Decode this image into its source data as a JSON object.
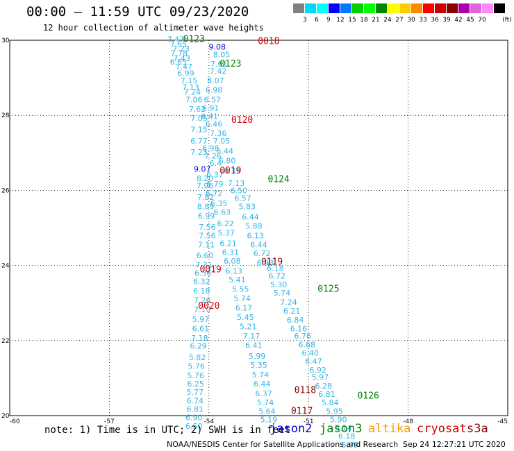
{
  "title": "00:00 – 11:59 UTC 09/23/2020",
  "subtitle": "12 hour collection of altimeter wave heights",
  "legend": {
    "unit": "(ft)",
    "items": [
      {
        "color": "#808080",
        "label": ""
      },
      {
        "color": "#00d8ff",
        "label": "3"
      },
      {
        "color": "#00ffff",
        "label": "6"
      },
      {
        "color": "#0000ff",
        "label": "9"
      },
      {
        "color": "#0077ff",
        "label": "12"
      },
      {
        "color": "#00d000",
        "label": "15"
      },
      {
        "color": "#00ff00",
        "label": "18"
      },
      {
        "color": "#008800",
        "label": "21"
      },
      {
        "color": "#ffff00",
        "label": "24"
      },
      {
        "color": "#ffcc00",
        "label": "27"
      },
      {
        "color": "#ff8800",
        "label": "30"
      },
      {
        "color": "#ff0000",
        "label": "33"
      },
      {
        "color": "#cc0000",
        "label": "36"
      },
      {
        "color": "#880000",
        "label": "39"
      },
      {
        "color": "#aa00aa",
        "label": "42"
      },
      {
        "color": "#dd66dd",
        "label": "45"
      },
      {
        "color": "#ff88ff",
        "label": "70"
      },
      {
        "color": "#000000",
        "label": ""
      }
    ]
  },
  "axes": {
    "lon_range": [
      -60,
      -45
    ],
    "lat_range": [
      20,
      30
    ],
    "x_ticks": [
      {
        "v": -60,
        "label": "-60"
      },
      {
        "v": -57,
        "label": "-57"
      },
      {
        "v": -54,
        "label": "-54"
      },
      {
        "v": -51,
        "label": "-51"
      },
      {
        "v": -48,
        "label": "-48"
      },
      {
        "v": -45,
        "label": "-45"
      }
    ],
    "y_ticks": [
      {
        "v": 20,
        "label": "20"
      },
      {
        "v": 22,
        "label": "22"
      },
      {
        "v": 24,
        "label": "24"
      },
      {
        "v": 26,
        "label": "26"
      },
      {
        "v": 28,
        "label": "28"
      },
      {
        "v": 30,
        "label": "30"
      }
    ],
    "grid": "dotted"
  },
  "tracks": [
    {
      "color": "#33b5e5",
      "points": [
        {
          "lon": -55.0,
          "lat": 29.95,
          "v": "7.47"
        },
        {
          "lon": -54.92,
          "lat": 29.82,
          "v": "7.65"
        },
        {
          "lon": -54.84,
          "lat": 29.7,
          "v": "7.23"
        },
        {
          "lon": -54.9,
          "lat": 29.58,
          "v": "7.78"
        },
        {
          "lon": -54.82,
          "lat": 29.45,
          "v": "7.43"
        },
        {
          "lon": -54.92,
          "lat": 29.35,
          "v": "6.65"
        },
        {
          "lon": -54.75,
          "lat": 29.22,
          "v": "7.47"
        },
        {
          "lon": -54.7,
          "lat": 29.05,
          "v": "6.99"
        },
        {
          "lon": -54.6,
          "lat": 28.85,
          "v": "7.15"
        },
        {
          "lon": -54.55,
          "lat": 28.68,
          "v": "7.13"
        },
        {
          "lon": -54.5,
          "lat": 28.55,
          "v": "7.24"
        },
        {
          "lon": -54.45,
          "lat": 28.35,
          "v": "7.06"
        },
        {
          "lon": -54.35,
          "lat": 28.1,
          "v": "7.62"
        },
        {
          "lon": -54.3,
          "lat": 27.85,
          "v": "7.05"
        },
        {
          "lon": -54.3,
          "lat": 27.55,
          "v": "7.15"
        },
        {
          "lon": -54.3,
          "lat": 27.25,
          "v": "6.77"
        },
        {
          "lon": -54.3,
          "lat": 26.95,
          "v": "7.23"
        },
        {
          "lon": -54.12,
          "lat": 26.25,
          "v": "8.20"
        },
        {
          "lon": -54.12,
          "lat": 26.05,
          "v": "7.96"
        },
        {
          "lon": -54.1,
          "lat": 25.75,
          "v": "7.82"
        },
        {
          "lon": -54.1,
          "lat": 25.5,
          "v": "8.89"
        },
        {
          "lon": -54.08,
          "lat": 25.25,
          "v": "6.99"
        },
        {
          "lon": -54.05,
          "lat": 24.95,
          "v": "7.56"
        },
        {
          "lon": -54.05,
          "lat": 24.72,
          "v": "7.56"
        },
        {
          "lon": -54.08,
          "lat": 24.48,
          "v": "7.11"
        },
        {
          "lon": -54.12,
          "lat": 24.2,
          "v": "6.60"
        },
        {
          "lon": -54.15,
          "lat": 23.95,
          "v": "7.31"
        },
        {
          "lon": -54.18,
          "lat": 23.72,
          "v": "6.36"
        },
        {
          "lon": -54.22,
          "lat": 23.5,
          "v": "6.32"
        },
        {
          "lon": -54.22,
          "lat": 23.25,
          "v": "6.18"
        },
        {
          "lon": -54.2,
          "lat": 23.0,
          "v": "7.26"
        },
        {
          "lon": -54.2,
          "lat": 22.75,
          "v": "7.10"
        },
        {
          "lon": -54.25,
          "lat": 22.5,
          "v": "5.97"
        },
        {
          "lon": -54.25,
          "lat": 22.25,
          "v": "6.61"
        },
        {
          "lon": -54.28,
          "lat": 22.0,
          "v": "7.18"
        },
        {
          "lon": -54.32,
          "lat": 21.78,
          "v": "6.29"
        }
      ]
    },
    {
      "color": "#33b5e5",
      "points": [
        {
          "lon": -54.35,
          "lat": 21.48,
          "v": "5.82"
        },
        {
          "lon": -54.38,
          "lat": 21.25,
          "v": "5.76"
        },
        {
          "lon": -54.4,
          "lat": 21.0,
          "v": "5.76"
        },
        {
          "lon": -54.4,
          "lat": 20.78,
          "v": "6.25"
        },
        {
          "lon": -54.42,
          "lat": 20.55,
          "v": "5.77"
        },
        {
          "lon": -54.42,
          "lat": 20.32,
          "v": "6.74"
        },
        {
          "lon": -54.42,
          "lat": 20.1,
          "v": "6.81"
        },
        {
          "lon": -54.45,
          "lat": 19.88,
          "v": "6.90"
        },
        {
          "lon": -54.45,
          "lat": 19.65,
          "v": "6.50"
        }
      ]
    },
    {
      "color": "#33b5e5",
      "points": [
        {
          "lon": -53.62,
          "lat": 29.55,
          "v": "8.05"
        },
        {
          "lon": -53.7,
          "lat": 29.3,
          "v": "7.61"
        },
        {
          "lon": -53.72,
          "lat": 29.1,
          "v": "7.42"
        },
        {
          "lon": -53.8,
          "lat": 28.85,
          "v": "8.07"
        },
        {
          "lon": -53.85,
          "lat": 28.6,
          "v": "6.98"
        },
        {
          "lon": -53.9,
          "lat": 28.35,
          "v": "6.57"
        },
        {
          "lon": -53.95,
          "lat": 28.12,
          "v": "6.91"
        },
        {
          "lon": -53.98,
          "lat": 27.9,
          "v": "6.41"
        },
        {
          "lon": -53.85,
          "lat": 27.7,
          "v": "6.46"
        },
        {
          "lon": -53.72,
          "lat": 27.45,
          "v": "7.36"
        },
        {
          "lon": -53.62,
          "lat": 27.25,
          "v": "7.05"
        },
        {
          "lon": -53.52,
          "lat": 26.98,
          "v": "6.44"
        },
        {
          "lon": -53.45,
          "lat": 26.72,
          "v": "6.80"
        },
        {
          "lon": -53.3,
          "lat": 26.45,
          "v": "6.39"
        },
        {
          "lon": -53.18,
          "lat": 26.12,
          "v": "7.13"
        },
        {
          "lon": -53.1,
          "lat": 25.92,
          "v": "6.50"
        },
        {
          "lon": -52.98,
          "lat": 25.72,
          "v": "6.57"
        },
        {
          "lon": -52.85,
          "lat": 25.5,
          "v": "5.83"
        },
        {
          "lon": -52.75,
          "lat": 25.22,
          "v": "6.44"
        },
        {
          "lon": -52.65,
          "lat": 24.98,
          "v": "5.88"
        },
        {
          "lon": -52.6,
          "lat": 24.72,
          "v": "6.13"
        },
        {
          "lon": -52.5,
          "lat": 24.48,
          "v": "6.44"
        },
        {
          "lon": -52.4,
          "lat": 24.25,
          "v": "6.72"
        },
        {
          "lon": -52.3,
          "lat": 24.0,
          "v": "6.93"
        }
      ]
    },
    {
      "color": "#33b5e5",
      "points": [
        {
          "lon": -53.95,
          "lat": 27.05,
          "v": "6.98"
        },
        {
          "lon": -53.88,
          "lat": 26.85,
          "v": "7.26"
        },
        {
          "lon": -53.8,
          "lat": 26.65,
          "v": "6.4"
        },
        {
          "lon": -53.82,
          "lat": 26.35,
          "v": "6.37"
        },
        {
          "lon": -53.82,
          "lat": 26.1,
          "v": "6.79"
        },
        {
          "lon": -53.85,
          "lat": 25.85,
          "v": "6.72"
        },
        {
          "lon": -53.7,
          "lat": 25.58,
          "v": "6.35"
        },
        {
          "lon": -53.6,
          "lat": 25.35,
          "v": "6.63"
        },
        {
          "lon": -53.5,
          "lat": 25.05,
          "v": "6.22"
        },
        {
          "lon": -53.48,
          "lat": 24.8,
          "v": "5.37"
        },
        {
          "lon": -53.42,
          "lat": 24.52,
          "v": "6.21"
        },
        {
          "lon": -53.35,
          "lat": 24.28,
          "v": "6.31"
        },
        {
          "lon": -53.3,
          "lat": 24.05,
          "v": "6.08"
        },
        {
          "lon": -53.25,
          "lat": 23.78,
          "v": "6.13"
        },
        {
          "lon": -53.15,
          "lat": 23.55,
          "v": "5.41"
        },
        {
          "lon": -53.05,
          "lat": 23.3,
          "v": "5.55"
        },
        {
          "lon": -53.0,
          "lat": 23.05,
          "v": "5.74"
        },
        {
          "lon": -52.95,
          "lat": 22.8,
          "v": "6.17"
        },
        {
          "lon": -52.9,
          "lat": 22.55,
          "v": "5.45"
        },
        {
          "lon": -52.82,
          "lat": 22.3,
          "v": "5.21"
        },
        {
          "lon": -52.72,
          "lat": 22.05,
          "v": "7.17"
        },
        {
          "lon": -52.65,
          "lat": 21.8,
          "v": "6.41"
        }
      ]
    },
    {
      "color": "#33b5e5",
      "points": [
        {
          "lon": -52.55,
          "lat": 21.52,
          "v": "5.99"
        },
        {
          "lon": -52.5,
          "lat": 21.28,
          "v": "5.35"
        },
        {
          "lon": -52.45,
          "lat": 21.02,
          "v": "5.74"
        },
        {
          "lon": -52.4,
          "lat": 20.78,
          "v": "6.44"
        },
        {
          "lon": -52.35,
          "lat": 20.52,
          "v": "6.37"
        },
        {
          "lon": -52.3,
          "lat": 20.28,
          "v": "5.74"
        },
        {
          "lon": -52.25,
          "lat": 20.05,
          "v": "5.64"
        },
        {
          "lon": -52.2,
          "lat": 19.82,
          "v": "5.19"
        }
      ]
    },
    {
      "color": "#33b5e5",
      "points": [
        {
          "lon": -52.0,
          "lat": 23.85,
          "v": "6.18"
        },
        {
          "lon": -51.95,
          "lat": 23.65,
          "v": "6.72"
        },
        {
          "lon": -51.9,
          "lat": 23.42,
          "v": "5.30"
        },
        {
          "lon": -51.8,
          "lat": 23.2,
          "v": "5.74"
        },
        {
          "lon": -51.6,
          "lat": 22.95,
          "v": "7.24"
        },
        {
          "lon": -51.5,
          "lat": 22.72,
          "v": "6.21"
        },
        {
          "lon": -51.4,
          "lat": 22.48,
          "v": "6.84"
        },
        {
          "lon": -51.3,
          "lat": 22.25,
          "v": "6.16"
        },
        {
          "lon": -51.18,
          "lat": 22.05,
          "v": "6.76"
        },
        {
          "lon": -51.05,
          "lat": 21.82,
          "v": "6.68"
        },
        {
          "lon": -50.95,
          "lat": 21.6,
          "v": "6.40"
        },
        {
          "lon": -50.85,
          "lat": 21.38,
          "v": "6.47"
        },
        {
          "lon": -50.72,
          "lat": 21.15,
          "v": "6.92"
        },
        {
          "lon": -50.65,
          "lat": 20.95,
          "v": "5.97"
        },
        {
          "lon": -50.55,
          "lat": 20.72,
          "v": "6.28"
        },
        {
          "lon": -50.45,
          "lat": 20.5,
          "v": "6.81"
        },
        {
          "lon": -50.35,
          "lat": 20.28,
          "v": "5.84"
        },
        {
          "lon": -50.22,
          "lat": 20.05,
          "v": "5.95"
        },
        {
          "lon": -50.1,
          "lat": 19.82,
          "v": "5.90"
        },
        {
          "lon": -49.95,
          "lat": 19.6,
          "v": "5.14"
        },
        {
          "lon": -49.85,
          "lat": 19.38,
          "v": "6.18"
        },
        {
          "lon": -49.75,
          "lat": 19.15,
          "v": "5.99"
        }
      ]
    },
    {
      "color": "#0000cc",
      "points": [
        {
          "lon": -53.75,
          "lat": 29.75,
          "v": "9.08"
        },
        {
          "lon": -54.2,
          "lat": 26.5,
          "v": "9.07"
        }
      ]
    }
  ],
  "pass_labels": [
    {
      "text": "0123",
      "lon": -54.45,
      "lat": 29.95,
      "color": "#008000"
    },
    {
      "text": "0018",
      "lon": -52.2,
      "lat": 29.9,
      "color": "#cc0000"
    },
    {
      "text": "0123",
      "lon": -53.35,
      "lat": 29.3,
      "color": "#008000"
    },
    {
      "text": "0120",
      "lon": -53.0,
      "lat": 27.8,
      "color": "#cc0000"
    },
    {
      "text": "0019",
      "lon": -53.35,
      "lat": 26.45,
      "color": "#cc0000"
    },
    {
      "text": "0124",
      "lon": -51.9,
      "lat": 26.22,
      "color": "#008000"
    },
    {
      "text": "0119",
      "lon": -52.1,
      "lat": 24.02,
      "color": "#880000"
    },
    {
      "text": "0019",
      "lon": -53.95,
      "lat": 23.82,
      "color": "#cc0000"
    },
    {
      "text": "0125",
      "lon": -50.4,
      "lat": 23.3,
      "color": "#008000"
    },
    {
      "text": "0020",
      "lon": -54.0,
      "lat": 22.85,
      "color": "#cc0000"
    },
    {
      "text": "0118",
      "lon": -51.1,
      "lat": 20.6,
      "color": "#880000"
    },
    {
      "text": "0126",
      "lon": -49.2,
      "lat": 20.45,
      "color": "#008000"
    },
    {
      "text": "0117",
      "lon": -51.2,
      "lat": 20.05,
      "color": "#880000"
    }
  ],
  "note": "note: 1) Time is in UTC; 2) SWH is in feet",
  "missions": [
    {
      "name": "jason2",
      "color": "#0000cc"
    },
    {
      "name": "jason3",
      "color": "#008000"
    },
    {
      "name": "altika",
      "color": "#ff9900"
    },
    {
      "name": "cryosat",
      "color": "#cc0000"
    },
    {
      "name": "s3a",
      "color": "#880000"
    }
  ],
  "credit": "NOAA/NESDIS Center for Satellite Applications and Research",
  "timestamp": "Sep 24 12:27:21 UTC 2020"
}
